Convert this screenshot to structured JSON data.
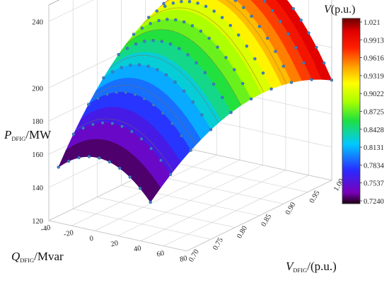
{
  "chart_data": {
    "type": "surface3d",
    "z_axis": {
      "label_main": "P",
      "label_sub": "DFIG",
      "label_unit": "/MW",
      "ticks": [
        "120",
        "140",
        "160",
        "180",
        "200",
        "240"
      ],
      "range": [
        120,
        250
      ]
    },
    "x_axis": {
      "label_main": "Q",
      "label_sub": "DFIG",
      "label_unit": "/Mvar",
      "ticks": [
        "-40",
        "-20",
        "0",
        "20",
        "40",
        "60",
        "80"
      ],
      "range": [
        -40,
        80
      ]
    },
    "y_axis": {
      "label_main": "V",
      "label_sub": "DFIG",
      "label_unit": "/(p.u.)",
      "ticks": [
        "0.70",
        "0.75",
        "0.80",
        "0.85",
        "0.90",
        "0.95",
        "1.00"
      ],
      "range": [
        0.7,
        1.0
      ]
    },
    "colorbar": {
      "title_main": "V",
      "title_unit": "(p.u.)",
      "ticks": [
        "1.021",
        "0.9913",
        "0.9616",
        "0.9319",
        "0.9022",
        "0.8725",
        "0.8428",
        "0.8131",
        "0.7834",
        "0.7537",
        "0.7240"
      ],
      "min": 0.724,
      "max": 1.021
    },
    "surface": {
      "description_points": "sampled operating points P(Q,V)",
      "peak": {
        "q": 10,
        "v": 0.95,
        "p": 236
      },
      "corners": [
        {
          "q": -40,
          "v": 0.72,
          "p": 165
        },
        {
          "q": 80,
          "v": 0.72,
          "p": 144
        },
        {
          "q": -40,
          "v": 1.0,
          "p": 232
        },
        {
          "q": 80,
          "v": 1.0,
          "p": 178
        }
      ]
    },
    "grid": true
  }
}
